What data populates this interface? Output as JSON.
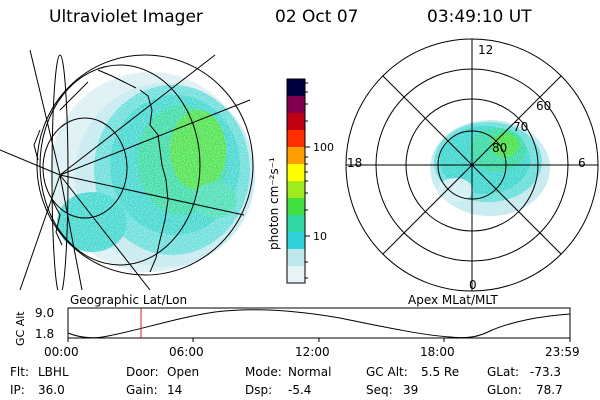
{
  "header": {
    "instrument": "Ultraviolet Imager",
    "date": "02 Oct 07",
    "time": "03:49:10 UT"
  },
  "left_panel": {
    "caption": "Geographic Lat/Lon"
  },
  "right_panel": {
    "caption": "Apex MLat/MLT",
    "mlt_labels": {
      "top": "12",
      "left": "18",
      "right": "6",
      "bottom": "0"
    },
    "lat_labels": [
      "60",
      "70",
      "80"
    ]
  },
  "colorbar": {
    "unit_label": "photon cm⁻²s⁻¹",
    "tick_100": "100",
    "tick_10": "10",
    "scale": "log",
    "colors": [
      "#e8f4f6",
      "#bfe8ee",
      "#30d0d8",
      "#2ed8a0",
      "#40e040",
      "#a0ea20",
      "#ffff00",
      "#ffa000",
      "#ff3000",
      "#c00010",
      "#800050",
      "#000040"
    ]
  },
  "altitude_plot": {
    "ylabel": "GC Alt",
    "ytick_high": "9.0",
    "ytick_low": "1.8",
    "xticks": [
      "00:00",
      "06:00",
      "12:00",
      "18:00",
      "23:59"
    ],
    "current_time_marker_color": "#cc2222"
  },
  "info": {
    "flt_label": "Flt:",
    "flt_value": "LBHL",
    "ip_label": "IP:",
    "ip_value": "36.0",
    "door_label": "Door:",
    "door_value": "Open",
    "gain_label": "Gain:",
    "gain_value": "14",
    "mode_label": "Mode:",
    "mode_value": "Normal",
    "dsp_label": "Dsp:",
    "dsp_value": "-5.4",
    "gcalt_label": "GC Alt:",
    "gcalt_value": "5.5 Re",
    "seq_label": "Seq:",
    "seq_value": "39",
    "glat_label": "GLat:",
    "glat_value": "-73.3",
    "glon_label": "GLon:",
    "glon_value": "78.7"
  }
}
